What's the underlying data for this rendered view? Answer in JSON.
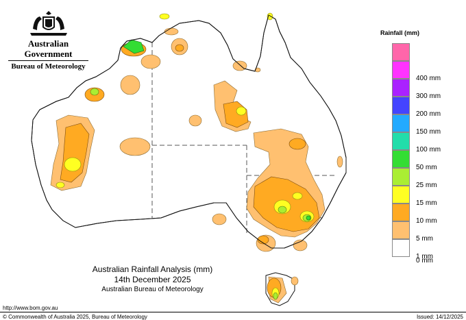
{
  "branding": {
    "government": "Australian Government",
    "bureau": "Bureau of Meteorology"
  },
  "map": {
    "title": "Australian Rainfall Analysis (mm)",
    "date": "14th December 2025",
    "agency": "Australian Bureau of Meteorology"
  },
  "legend": {
    "title": "Rainfall (mm)",
    "items": [
      {
        "label": "",
        "color": "#ff66aa"
      },
      {
        "label": "400 mm",
        "color": "#ff33ff"
      },
      {
        "label": "300 mm",
        "color": "#aa22ff"
      },
      {
        "label": "200 mm",
        "color": "#4444ff"
      },
      {
        "label": "150 mm",
        "color": "#22aaff"
      },
      {
        "label": "100 mm",
        "color": "#22ddaa"
      },
      {
        "label": "50 mm",
        "color": "#33dd33"
      },
      {
        "label": "25 mm",
        "color": "#aaee33"
      },
      {
        "label": "15 mm",
        "color": "#ffff22"
      },
      {
        "label": "10 mm",
        "color": "#ffaa22"
      },
      {
        "label": "5 mm",
        "color": "#ffc070"
      },
      {
        "label": "1 mm",
        "color": "#ffffff"
      },
      {
        "label": "0 mm",
        "color": ""
      }
    ]
  },
  "footer": {
    "url": "http://www.bom.gov.au",
    "copyright": "© Commonwealth of Australia 2025, Bureau of Meteorology",
    "issued": "Issued: 14/12/2025"
  }
}
